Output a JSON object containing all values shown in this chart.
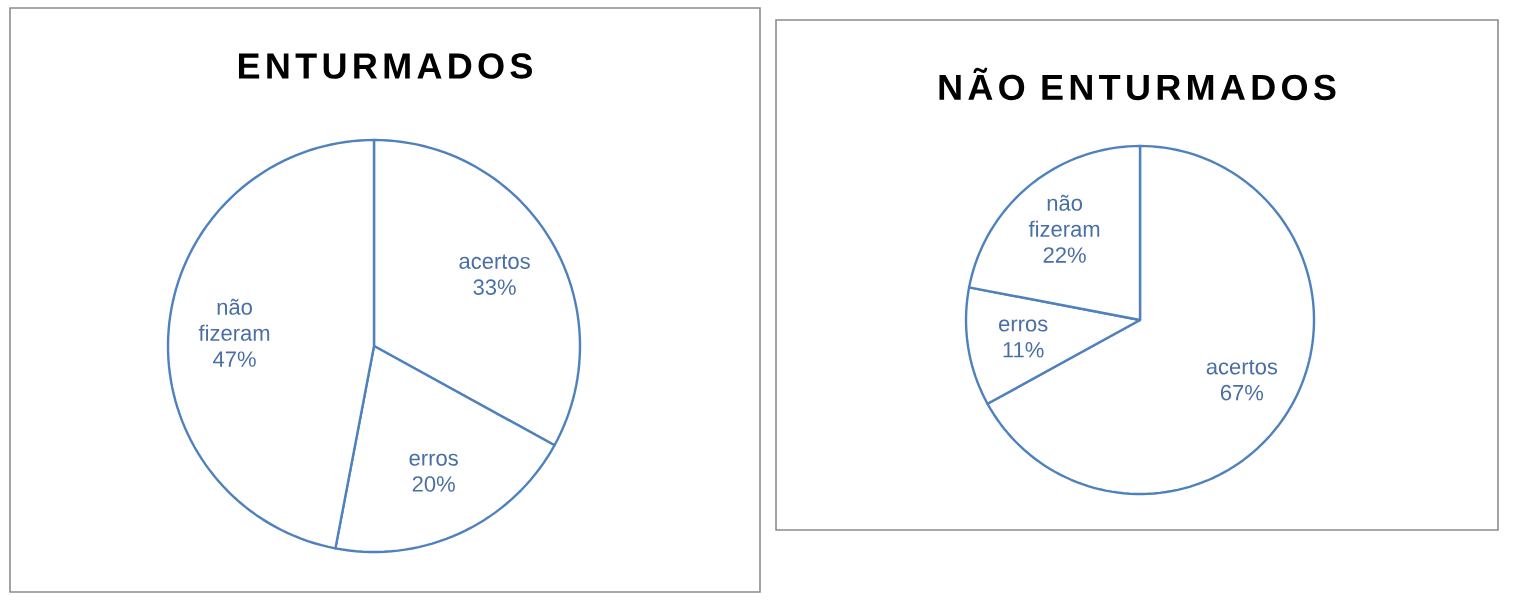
{
  "chart_data": [
    {
      "type": "pie",
      "title": "ENTURMADOS",
      "categories": [
        "acertos",
        "erros",
        "não fizeram"
      ],
      "values": [
        33,
        20,
        47
      ],
      "value_labels": [
        "33%",
        "20%",
        "47%"
      ],
      "colors": [
        "#ffffff",
        "#ffffff",
        "#ffffff"
      ]
    },
    {
      "type": "pie",
      "title": "NÃO ENTURMADOS",
      "categories": [
        "acertos",
        "erros",
        "não fizeram"
      ],
      "values": [
        67,
        11,
        22
      ],
      "value_labels": [
        "67%",
        "11%",
        "22%"
      ],
      "colors": [
        "#ffffff",
        "#ffffff",
        "#ffffff"
      ]
    }
  ]
}
